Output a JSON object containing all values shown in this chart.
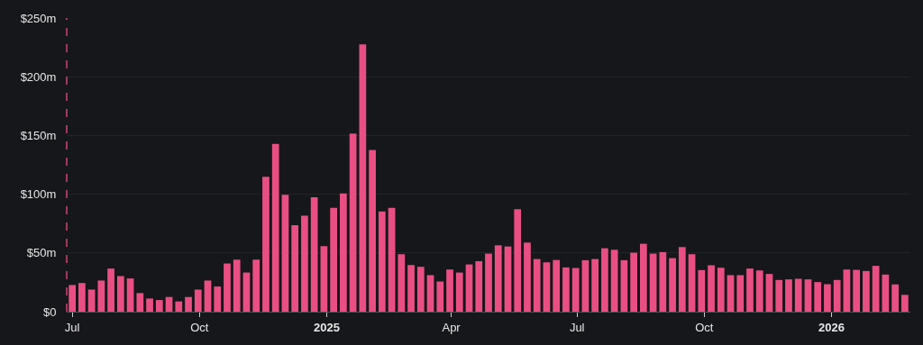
{
  "chart_data": {
    "type": "bar",
    "color": "#e94f83",
    "x": [
      "2024-07-01",
      "2024-07-08",
      "2024-07-15",
      "2024-07-22",
      "2024-07-29",
      "2024-08-05",
      "2024-08-12",
      "2024-08-19",
      "2024-08-26",
      "2024-09-02",
      "2024-09-09",
      "2024-09-16",
      "2024-09-23",
      "2024-09-30",
      "2024-10-07",
      "2024-10-14",
      "2024-10-21",
      "2024-10-28",
      "2024-11-04",
      "2024-11-11",
      "2024-11-18",
      "2024-11-25",
      "2024-12-02",
      "2024-12-09",
      "2024-12-16",
      "2024-12-23",
      "2024-12-30",
      "2025-01-06",
      "2025-01-13",
      "2025-01-20",
      "2025-01-27",
      "2025-02-03",
      "2025-02-10",
      "2025-02-17",
      "2025-02-24",
      "2025-03-03",
      "2025-03-10",
      "2025-03-17",
      "2025-03-24",
      "2025-03-31",
      "2025-04-07",
      "2025-04-14",
      "2025-04-21",
      "2025-04-28",
      "2025-05-05",
      "2025-05-12",
      "2025-05-19",
      "2025-05-26",
      "2025-06-02",
      "2025-06-09",
      "2025-06-16",
      "2025-06-23",
      "2025-06-30",
      "2025-07-07",
      "2025-07-14",
      "2025-07-21",
      "2025-07-28",
      "2025-08-04",
      "2025-08-11",
      "2025-08-18",
      "2025-08-25",
      "2025-09-01",
      "2025-09-08",
      "2025-09-15",
      "2025-09-22",
      "2025-09-29",
      "2025-10-06",
      "2025-10-13",
      "2025-10-20",
      "2025-10-27",
      "2025-11-03",
      "2025-11-10",
      "2025-11-17",
      "2025-11-24",
      "2025-12-01",
      "2025-12-08",
      "2025-12-15",
      "2025-12-22",
      "2025-12-29",
      "2026-01-05",
      "2026-01-12",
      "2026-01-19",
      "2026-01-26",
      "2026-02-02",
      "2026-02-09",
      "2026-02-16",
      "2026-02-23"
    ],
    "values": [
      22.7,
      24.4,
      18.8,
      26.5,
      36.7,
      30.3,
      28.3,
      15.8,
      11.2,
      9.9,
      12.5,
      8.7,
      12.5,
      18.8,
      26.5,
      21.4,
      41.0,
      44.3,
      33.3,
      44.3,
      114.8,
      142.8,
      99.5,
      73.6,
      81.7,
      97.3,
      55.8,
      88.3,
      100.6,
      151.7,
      227.6,
      137.7,
      85.3,
      88.3,
      48.9,
      39.7,
      38.2,
      31.1,
      25.7,
      35.9,
      33.3,
      40.2,
      43.0,
      49.4,
      56.5,
      55.5,
      87.3,
      58.8,
      44.8,
      42.0,
      44.0,
      37.7,
      37.2,
      43.8,
      44.8,
      54.0,
      52.7,
      43.8,
      50.2,
      57.8,
      49.4,
      50.7,
      45.6,
      55.0,
      48.9,
      35.4,
      39.5,
      37.4,
      31.1,
      31.1,
      36.7,
      35.1,
      32.1,
      27.0,
      27.5,
      28.0,
      27.5,
      25.2,
      23.4,
      27.0,
      35.9,
      35.6,
      34.6,
      39.0,
      31.6,
      23.2,
      14.3
    ],
    "xlim": [
      "2024-06-27",
      "2026-02-27"
    ],
    "xticks": [
      {
        "value": "2024-07-01",
        "label": "Jul"
      },
      {
        "value": "2024-10-01",
        "label": "Oct"
      },
      {
        "value": "2025-01-01",
        "label": "2025"
      },
      {
        "value": "2025-04-01",
        "label": "Apr"
      },
      {
        "value": "2025-07-01",
        "label": "Jul"
      },
      {
        "value": "2025-10-01",
        "label": "Oct"
      },
      {
        "value": "2026-01-01",
        "label": "2026"
      }
    ],
    "ylim": [
      0,
      250
    ],
    "yticks": [
      {
        "value": 0,
        "label": "$0"
      },
      {
        "value": 50,
        "label": "$50m"
      },
      {
        "value": 100,
        "label": "$100m"
      },
      {
        "value": 150,
        "label": "$150m"
      },
      {
        "value": 200,
        "label": "$200m"
      },
      {
        "value": 250,
        "label": "$250m"
      }
    ],
    "grid": "y"
  }
}
